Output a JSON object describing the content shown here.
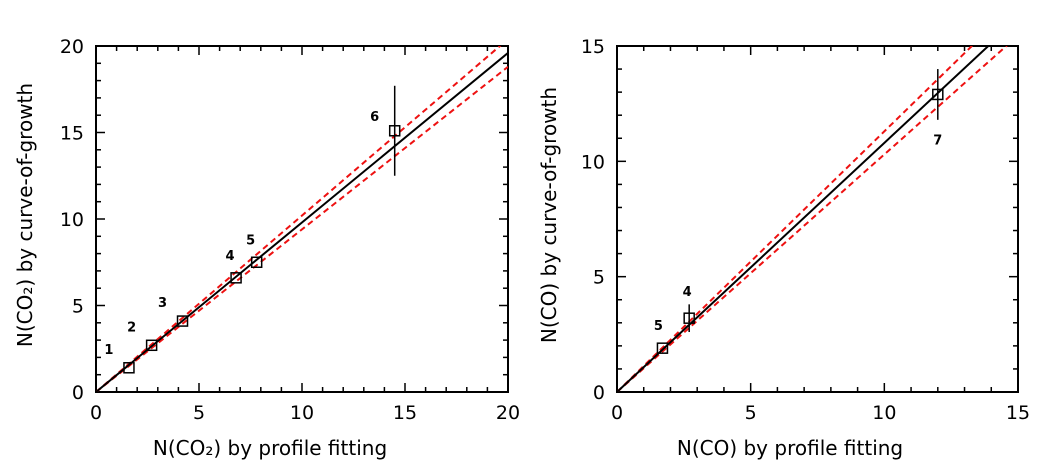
{
  "chart_data": [
    {
      "type": "scatter",
      "title": "",
      "xlabel": "N(CO₂) by profile fitting",
      "ylabel": "N(CO₂) by curve-of-growth",
      "xlim": [
        0,
        20
      ],
      "ylim": [
        0,
        20
      ],
      "xticks": [
        "0",
        "5",
        "10",
        "15",
        "20"
      ],
      "yticks": [
        "0",
        "5",
        "10",
        "15",
        "20"
      ],
      "grid": false,
      "points": [
        {
          "label": "1",
          "x": 1.6,
          "y": 1.4,
          "yerr": 0.0
        },
        {
          "label": "2",
          "x": 2.7,
          "y": 2.7,
          "yerr": 0.0
        },
        {
          "label": "3",
          "x": 4.2,
          "y": 4.1,
          "yerr": 0.0
        },
        {
          "label": "4",
          "x": 6.8,
          "y": 6.6,
          "yerr": 0.0
        },
        {
          "label": "5",
          "x": 7.8,
          "y": 7.5,
          "yerr": 0.0
        },
        {
          "label": "6",
          "x": 14.5,
          "y": 15.1,
          "yerr": 2.6
        }
      ],
      "fit_line": {
        "slope": 0.98,
        "intercept": 0.0
      },
      "bound_lines": [
        {
          "slope": 0.94,
          "intercept": 0.0
        },
        {
          "slope": 1.02,
          "intercept": 0.0
        }
      ],
      "colors": {
        "fit": "#000000",
        "bounds": "#ee1111"
      }
    },
    {
      "type": "scatter",
      "title": "",
      "xlabel": "N(CO) by profile fitting",
      "ylabel": "N(CO) by curve-of-growth",
      "xlim": [
        0,
        15
      ],
      "ylim": [
        0,
        15
      ],
      "xticks": [
        "0",
        "5",
        "10",
        "15"
      ],
      "yticks": [
        "0",
        "5",
        "10",
        "15"
      ],
      "grid": false,
      "points": [
        {
          "label": "5",
          "x": 1.7,
          "y": 1.9,
          "yerr": 0.0
        },
        {
          "label": "4",
          "x": 2.7,
          "y": 3.2,
          "yerr": 0.6
        },
        {
          "label": "7",
          "x": 12.0,
          "y": 12.9,
          "yerr": 1.1
        }
      ],
      "fit_line": {
        "slope": 1.08,
        "intercept": 0.0
      },
      "bound_lines": [
        {
          "slope": 1.03,
          "intercept": 0.0
        },
        {
          "slope": 1.13,
          "intercept": 0.0
        }
      ],
      "colors": {
        "fit": "#000000",
        "bounds": "#ee1111"
      }
    }
  ]
}
